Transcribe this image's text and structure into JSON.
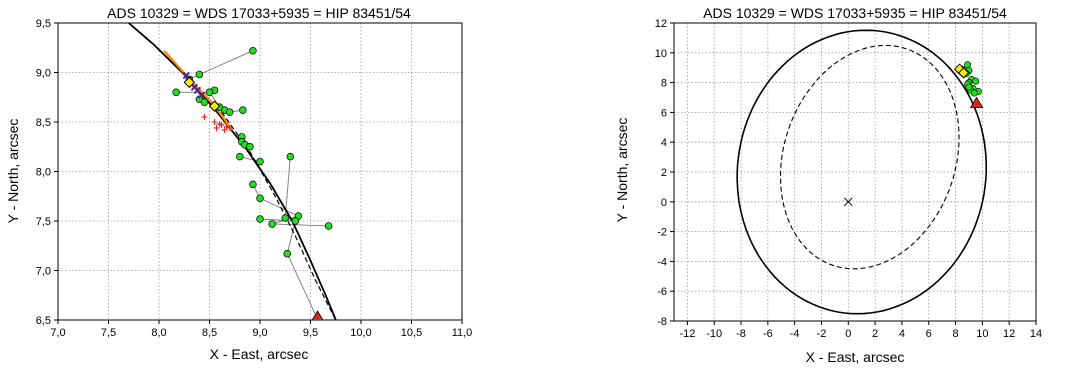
{
  "chart_data": [
    {
      "type": "scatter",
      "title": "ADS 10329 = WDS 17033+5935 = HIP 83451/54",
      "xlabel": "X - East, arcsec",
      "ylabel": "Y - North, arcsec",
      "xlim": [
        7.0,
        11.0
      ],
      "ylim": [
        6.5,
        9.5
      ],
      "xticks": [
        "7,0",
        "7,5",
        "8,0",
        "8,5",
        "9,0",
        "9,5",
        "10,0",
        "10,5",
        "11,0"
      ],
      "yticks": [
        "6,5",
        "7,0",
        "7,5",
        "8,0",
        "8,5",
        "9,0",
        "9,5"
      ],
      "grid": true,
      "colors": {
        "green": "#22dd22",
        "orange": "#ff8800",
        "red": "#dd2222",
        "purple": "#552288",
        "yellow": "#ffee00"
      },
      "orbit_solid": [
        [
          7.7,
          9.5
        ],
        [
          7.95,
          9.28
        ],
        [
          8.25,
          8.98
        ],
        [
          8.55,
          8.63
        ],
        [
          8.85,
          8.25
        ],
        [
          9.1,
          7.88
        ],
        [
          9.32,
          7.5
        ],
        [
          9.5,
          7.1
        ],
        [
          9.65,
          6.75
        ],
        [
          9.75,
          6.5
        ]
      ],
      "orbit_dashed": [
        [
          8.62,
          8.6
        ],
        [
          8.9,
          8.2
        ],
        [
          9.15,
          7.75
        ],
        [
          9.35,
          7.35
        ],
        [
          9.55,
          6.9
        ],
        [
          9.75,
          6.5
        ]
      ],
      "green_points": [
        [
          8.93,
          9.22
        ],
        [
          8.4,
          8.98
        ],
        [
          8.3,
          8.93
        ],
        [
          8.17,
          8.8
        ],
        [
          8.55,
          8.82
        ],
        [
          8.5,
          8.8
        ],
        [
          8.4,
          8.73
        ],
        [
          8.45,
          8.7
        ],
        [
          8.6,
          8.65
        ],
        [
          8.65,
          8.62
        ],
        [
          8.7,
          8.6
        ],
        [
          8.83,
          8.62
        ],
        [
          8.82,
          8.35
        ],
        [
          8.82,
          8.3
        ],
        [
          8.85,
          8.27
        ],
        [
          8.9,
          8.25
        ],
        [
          8.8,
          8.15
        ],
        [
          9.0,
          8.1
        ],
        [
          9.3,
          8.15
        ],
        [
          8.93,
          7.87
        ],
        [
          9.0,
          7.73
        ],
        [
          9.38,
          7.55
        ],
        [
          9.25,
          7.53
        ],
        [
          9.35,
          7.5
        ],
        [
          9.0,
          7.52
        ],
        [
          9.12,
          7.47
        ],
        [
          9.68,
          7.45
        ],
        [
          9.27,
          7.17
        ]
      ],
      "green_links": [
        [
          [
            8.93,
            9.22
          ],
          [
            8.4,
            8.98
          ]
        ],
        [
          [
            8.4,
            8.98
          ],
          [
            8.3,
            8.93
          ]
        ],
        [
          [
            8.17,
            8.8
          ],
          [
            8.5,
            8.8
          ]
        ],
        [
          [
            8.5,
            8.8
          ],
          [
            8.6,
            8.65
          ]
        ],
        [
          [
            8.83,
            8.62
          ],
          [
            8.7,
            8.6
          ]
        ],
        [
          [
            8.82,
            8.35
          ],
          [
            8.9,
            8.25
          ]
        ],
        [
          [
            8.8,
            8.15
          ],
          [
            9.0,
            8.1
          ]
        ],
        [
          [
            9.3,
            8.15
          ],
          [
            9.25,
            7.53
          ]
        ],
        [
          [
            8.93,
            7.87
          ],
          [
            9.0,
            7.73
          ]
        ],
        [
          [
            9.0,
            7.73
          ],
          [
            9.38,
            7.55
          ]
        ],
        [
          [
            9.38,
            7.55
          ],
          [
            9.12,
            7.47
          ]
        ],
        [
          [
            9.12,
            7.47
          ],
          [
            9.68,
            7.45
          ]
        ],
        [
          [
            9.0,
            7.52
          ],
          [
            9.35,
            7.5
          ]
        ],
        [
          [
            9.35,
            7.5
          ],
          [
            9.27,
            7.17
          ]
        ],
        [
          [
            9.27,
            7.17
          ],
          [
            9.56,
            6.53
          ]
        ]
      ],
      "red_plus": [
        [
          8.45,
          8.55
        ],
        [
          8.55,
          8.5
        ],
        [
          8.6,
          8.48
        ],
        [
          8.62,
          8.47
        ],
        [
          8.67,
          8.45
        ],
        [
          8.7,
          8.44
        ],
        [
          8.57,
          8.44
        ],
        [
          8.65,
          8.42
        ]
      ],
      "orange_segment": [
        [
          8.05,
          9.22
        ],
        [
          8.35,
          8.88
        ],
        [
          8.55,
          8.67
        ],
        [
          8.72,
          8.42
        ]
      ],
      "purple_marks": [
        [
          8.27,
          8.97
        ],
        [
          8.3,
          8.93
        ],
        [
          8.35,
          8.85
        ],
        [
          8.38,
          8.82
        ],
        [
          8.42,
          8.77
        ]
      ],
      "yellow_diamonds": [
        [
          8.3,
          8.9
        ],
        [
          8.55,
          8.66
        ]
      ],
      "red_triangle": [
        9.57,
        6.53
      ]
    },
    {
      "type": "scatter",
      "title": "ADS 10329 = WDS 17033+5935 = HIP 83451/54",
      "xlabel": "X - East, arcsec",
      "ylabel": "Y - North, arcsec",
      "xlim": [
        -13,
        14
      ],
      "ylim": [
        -8,
        12
      ],
      "xticks": [
        "-12",
        "-10",
        "-8",
        "-6",
        "-4",
        "-2",
        "0",
        "2",
        "4",
        "6",
        "8",
        "10",
        "12",
        "14"
      ],
      "yticks": [
        "-8",
        "-6",
        "-4",
        "-2",
        "0",
        "2",
        "4",
        "6",
        "8",
        "10",
        "12"
      ],
      "grid": true,
      "colors": {
        "green": "#22dd22",
        "red": "#dd2222",
        "yellow": "#ffee00"
      },
      "ellipse_solid": {
        "cx": 1.0,
        "cy": 2.0,
        "rx": 9.2,
        "ry": 9.6,
        "angle": -28
      },
      "ellipse_dashed": {
        "cx": 1.6,
        "cy": 3.0,
        "rx": 6.3,
        "ry": 7.8,
        "angle": -28
      },
      "center_mark": [
        0,
        0
      ],
      "green_points": [
        [
          8.9,
          9.2
        ],
        [
          8.5,
          8.9
        ],
        [
          8.3,
          8.9
        ],
        [
          9.0,
          8.8
        ],
        [
          8.8,
          8.6
        ],
        [
          9.2,
          8.2
        ],
        [
          9.0,
          8.0
        ],
        [
          9.5,
          8.1
        ],
        [
          8.9,
          7.9
        ],
        [
          9.3,
          7.6
        ],
        [
          9.1,
          7.5
        ],
        [
          9.7,
          7.4
        ],
        [
          9.4,
          7.3
        ],
        [
          9.0,
          7.7
        ]
      ],
      "yellow_diamonds": [
        [
          8.3,
          8.9
        ],
        [
          8.6,
          8.65
        ]
      ],
      "red_triangle": [
        9.57,
        6.6
      ]
    }
  ]
}
